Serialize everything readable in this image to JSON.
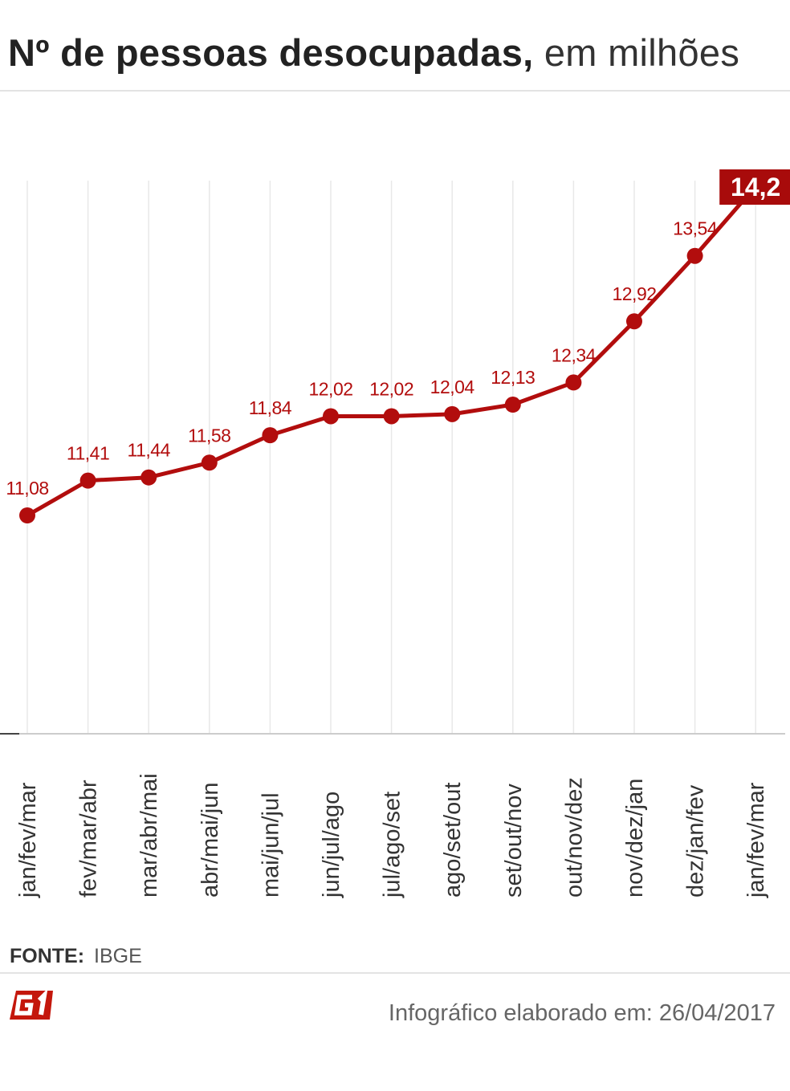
{
  "header": {
    "title_bold": "Nº de pessoas desocupadas,",
    "title_light": "em milhões"
  },
  "chart_data": {
    "type": "line",
    "title": "Nº de pessoas desocupadas, em milhões",
    "xlabel": "",
    "ylabel": "",
    "categories": [
      "jan/fev/mar",
      "fev/mar/abr",
      "mar/abr/mai",
      "abr/mai/jun",
      "mai/jun/jul",
      "jun/jul/ago",
      "jul/ago/set",
      "ago/set/out",
      "set/out/nov",
      "out/nov/dez",
      "nov/dez/jan",
      "dez/jan/fev",
      "jan/fev/mar"
    ],
    "values": [
      11.08,
      11.41,
      11.44,
      11.58,
      11.84,
      12.02,
      12.02,
      12.04,
      12.13,
      12.34,
      12.92,
      13.54,
      14.2
    ],
    "value_labels": [
      "11,08",
      "11,41",
      "11,44",
      "11,58",
      "11,84",
      "12,02",
      "12,02",
      "12,04",
      "12,13",
      "12,34",
      "12,92",
      "13,54",
      "14,2"
    ],
    "grid": "vertical",
    "highlight_last": true,
    "colors": {
      "line": "#b20d0d",
      "label": "#b20d0d",
      "highlight_bg": "#a80b0b",
      "highlight_text": "#ffffff",
      "grid": "#e8e8e8",
      "axis": "#888888",
      "tick_text": "#333333"
    }
  },
  "footer": {
    "source_label": "FONTE:",
    "source_value": "IBGE",
    "logo_text": "G1",
    "logo_color": "#c4170c",
    "credit": "Infográfico elaborado em: 26/04/2017"
  }
}
